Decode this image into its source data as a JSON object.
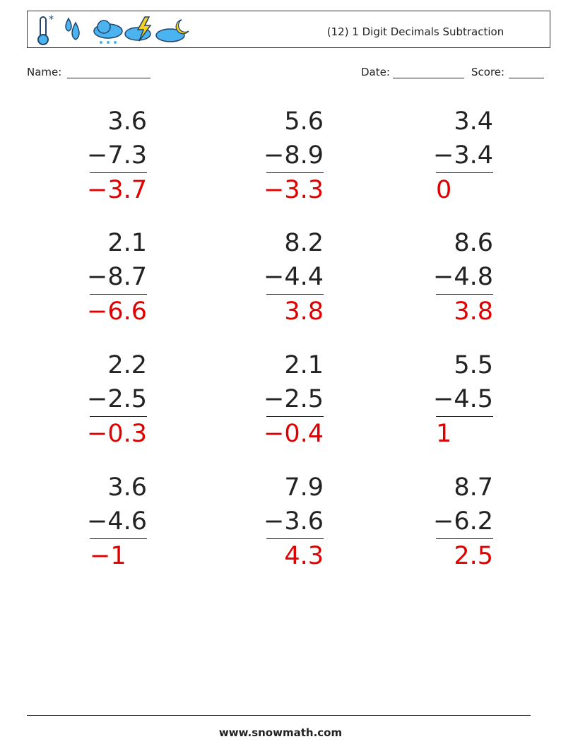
{
  "header": {
    "title": "(12) 1 Digit Decimals Subtraction"
  },
  "fields": {
    "name": "Name:",
    "date": "Date:",
    "score": "Score:"
  },
  "problems": [
    {
      "top": "3.6",
      "bottom": "−7.3",
      "answer": "−3.7"
    },
    {
      "top": "5.6",
      "bottom": "−8.9",
      "answer": "−3.3"
    },
    {
      "top": "3.4",
      "bottom": "−3.4",
      "answer": "0"
    },
    {
      "top": "2.1",
      "bottom": "−8.7",
      "answer": "−6.6"
    },
    {
      "top": "8.2",
      "bottom": "−4.4",
      "answer": "3.8"
    },
    {
      "top": "8.6",
      "bottom": "−4.8",
      "answer": "3.8"
    },
    {
      "top": "2.2",
      "bottom": "−2.5",
      "answer": "−0.3"
    },
    {
      "top": "2.1",
      "bottom": "−2.5",
      "answer": "−0.4"
    },
    {
      "top": "5.5",
      "bottom": "−4.5",
      "answer": "1"
    },
    {
      "top": "3.6",
      "bottom": "−4.6",
      "answer": "−1"
    },
    {
      "top": "7.9",
      "bottom": "−3.6",
      "answer": "4.3"
    },
    {
      "top": "8.7",
      "bottom": "−6.2",
      "answer": "2.5"
    }
  ],
  "footer": {
    "url": "www.snowmath.com"
  }
}
